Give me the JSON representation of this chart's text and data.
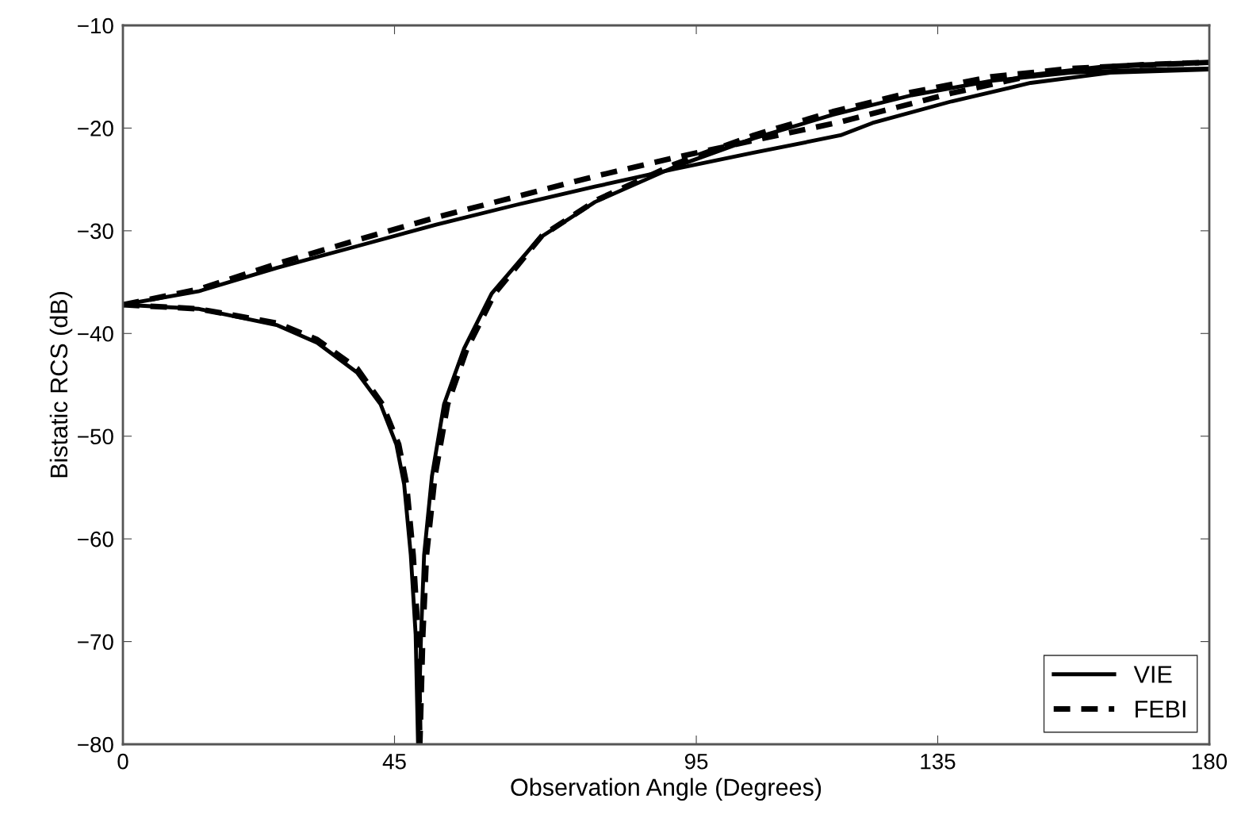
{
  "chart_data": {
    "type": "line",
    "xlabel": "Observation Angle (Degrees)",
    "ylabel": "Bistatic RCS (dB)",
    "xlim": [
      0,
      180
    ],
    "xticks": [
      0,
      45,
      95,
      135,
      180
    ],
    "ylim": [
      -80,
      -10
    ],
    "yticks": [
      -80,
      -70,
      -60,
      -50,
      -40,
      -30,
      -20,
      -10
    ],
    "grid": false,
    "legend": "bottom right",
    "series": [
      {
        "name": "VIE",
        "color": "#000000",
        "line_style": "solid",
        "x": [
          0,
          12.5,
          25.6,
          38.8,
          51.9,
          65,
          78.2,
          91.3,
          104.5,
          118.9,
          124.2,
          137.3,
          150.4,
          163.6,
          180
        ],
        "values": [
          -37.2,
          -35.9,
          -33.6,
          -31.5,
          -29.4,
          -27.5,
          -25.7,
          -24.0,
          -22.4,
          -20.7,
          -19.5,
          -17.4,
          -15.6,
          -14.6,
          -14.3
        ]
      },
      {
        "name": "FEBI",
        "color": "#000000",
        "line_style": "dashed",
        "x": [
          0,
          12.5,
          25.6,
          38.8,
          51.9,
          65,
          78.2,
          91.3,
          104.5,
          118.9,
          137.3,
          150.4,
          163.6,
          180
        ],
        "values": [
          -37.2,
          -35.7,
          -33.2,
          -30.9,
          -28.7,
          -26.7,
          -24.7,
          -22.9,
          -21.2,
          -19.4,
          -16.6,
          -14.9,
          -14.0,
          -13.6
        ]
      },
      {
        "color": "#000000",
        "line_style": "solid",
        "x": [
          0,
          12.5,
          25.6,
          32.2,
          38.8,
          42.7,
          45.3,
          46.6,
          47.7,
          48.5,
          48.9,
          49.4,
          49.9,
          51.2,
          53.2,
          56.5,
          61.1,
          69.0,
          78.2,
          91.3,
          104.5,
          117.6,
          130.7,
          143.9,
          157,
          170.1,
          180
        ],
        "values": [
          -37.2,
          -37.6,
          -39.2,
          -40.9,
          -43.8,
          -46.9,
          -50.8,
          -54.7,
          -61.6,
          -69.3,
          -80,
          -69.3,
          -61.6,
          -53.9,
          -46.9,
          -41.5,
          -36.1,
          -30.7,
          -27.2,
          -23.8,
          -21.0,
          -18.7,
          -16.8,
          -15.4,
          -14.6,
          -14.3,
          -14.2
        ]
      },
      {
        "color": "#000000",
        "line_style": "dashed",
        "x": [
          0,
          12.5,
          25.6,
          32.2,
          38.8,
          43.0,
          45.7,
          47.0,
          48.1,
          48.9,
          49.2,
          49.7,
          50.3,
          51.7,
          53.8,
          57.0,
          61.6,
          69.4,
          78.5,
          91.5,
          104.5,
          117.6,
          130.7,
          143.9,
          157,
          170.1,
          180
        ],
        "values": [
          -37.2,
          -37.6,
          -39.0,
          -40.6,
          -43.4,
          -46.9,
          -50.8,
          -54.7,
          -61.6,
          -69.3,
          -80,
          -69.3,
          -61.6,
          -53.9,
          -46.9,
          -41.5,
          -36.1,
          -30.5,
          -27.0,
          -23.5,
          -20.7,
          -18.4,
          -16.5,
          -15.0,
          -14.2,
          -13.8,
          -13.6
        ]
      }
    ]
  }
}
